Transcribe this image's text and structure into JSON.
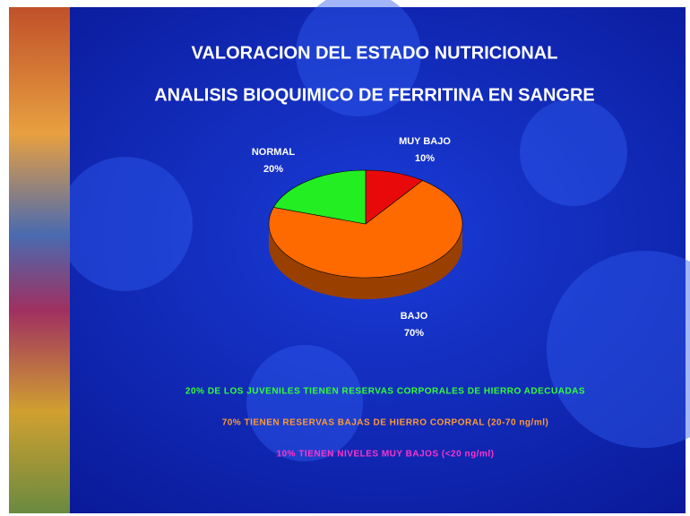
{
  "chart_data": {
    "type": "pie",
    "title": "VALORACION DEL ESTADO NUTRICIONAL",
    "subtitle": "ANALISIS BIOQUIMICO DE FERRITINA EN SANGRE",
    "categories": [
      "MUY BAJO",
      "BAJO",
      "NORMAL"
    ],
    "values": [
      10,
      70,
      20
    ],
    "value_labels": [
      "10%",
      "70%",
      "20%"
    ],
    "colors": [
      "#e80a0a",
      "#ff6a00",
      "#22ee22"
    ],
    "annotations": [
      "20% DE LOS JUVENILES TIENEN RESERVAS CORPORALES DE HIERRO ADECUADAS",
      "70% TIENEN RESERVAS BAJAS DE HIERRO CORPORAL (20-70 ng/ml)",
      "10% TIENEN NIVELES MUY BAJOS (<20 ng/ml)"
    ]
  }
}
